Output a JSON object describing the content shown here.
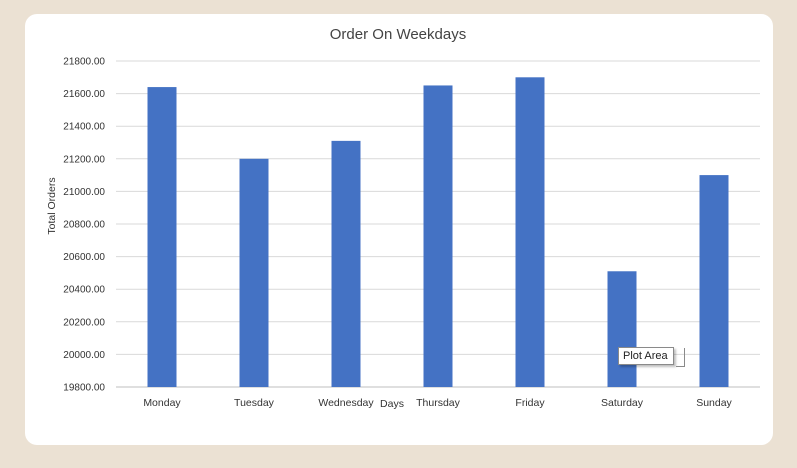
{
  "chart_data": {
    "type": "bar",
    "title": "Order On Weekdays",
    "xlabel": "Days",
    "ylabel": "Total Orders",
    "categories": [
      "Monday",
      "Tuesday",
      "Wednesday",
      "Thursday",
      "Friday",
      "Saturday",
      "Sunday"
    ],
    "values": [
      21640,
      21200,
      21310,
      21650,
      21700,
      20510,
      21100
    ],
    "ylim": [
      19800,
      21800
    ],
    "yticks": [
      "19800.00",
      "20000.00",
      "20200.00",
      "20400.00",
      "20600.00",
      "20800.00",
      "21000.00",
      "21200.00",
      "21400.00",
      "21600.00",
      "21800.00"
    ],
    "grid": true,
    "bar_color": "#4472c4"
  },
  "tooltip": {
    "text": "Plot Area"
  }
}
